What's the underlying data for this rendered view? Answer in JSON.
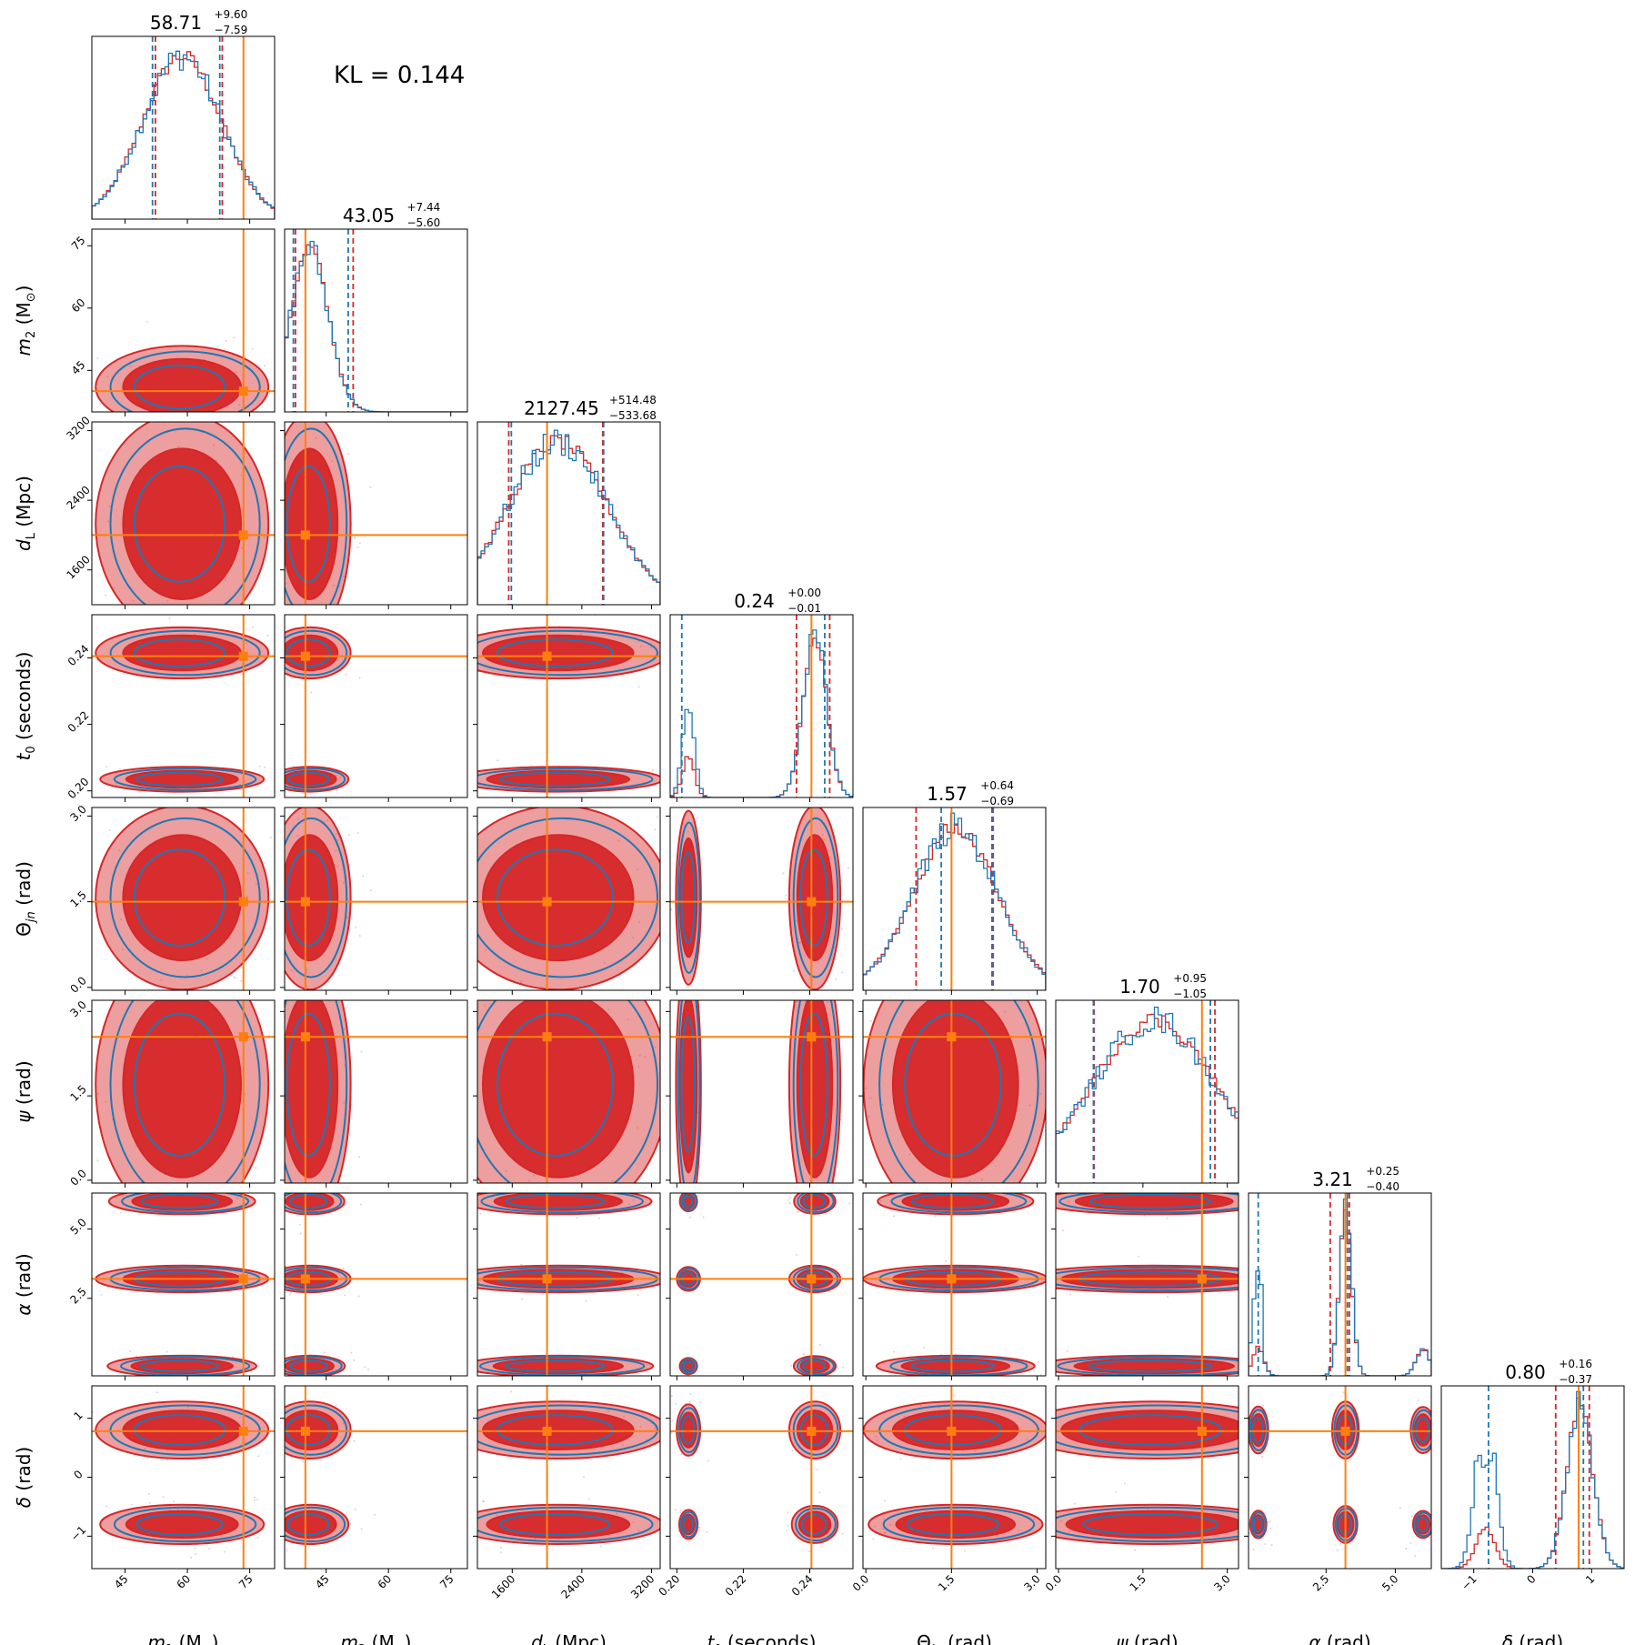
{
  "figure": {
    "kl_label": "KL = 0.144"
  },
  "colors": {
    "model_a": "#d62728",
    "model_b": "#1f77b4",
    "truth": "#ff7f0e"
  },
  "chart_data": {
    "type": "corner",
    "grid": false,
    "legend": "none",
    "parameters": [
      {
        "key": "m1",
        "label_html": "<tspan font-style='italic'>m</tspan><tspan font-size='13' dy='5'>1</tspan><tspan dy='-5'> (M</tspan><tspan font-size='13' dy='5'>⊙</tspan><tspan dy='-5'>)</tspan>",
        "label_text": "m1 (M⊙)",
        "range": [
          37,
          81
        ],
        "ticks": [
          45,
          60,
          75
        ],
        "tick_labels": [
          "45",
          "60",
          "75"
        ],
        "truth": 73.5,
        "median": 58.71,
        "plus": 9.6,
        "minus": 7.59,
        "title": "58.71",
        "title_plus": "+9.60",
        "title_minus": "−7.59"
      },
      {
        "key": "m2",
        "label_html": "<tspan font-style='italic'>m</tspan><tspan font-size='13' dy='5'>2</tspan><tspan dy='-5'> (M</tspan><tspan font-size='13' dy='5'>⊙</tspan><tspan dy='-5'>)</tspan>",
        "label_text": "m2 (M⊙)",
        "range": [
          35,
          79
        ],
        "ticks": [
          45,
          60,
          75
        ],
        "tick_labels": [
          "45",
          "60",
          "75"
        ],
        "truth": 40,
        "median": 43.05,
        "plus": 7.44,
        "minus": 5.6,
        "title": "43.05",
        "title_plus": "+7.44",
        "title_minus": "−5.60"
      },
      {
        "key": "dL",
        "label_html": "<tspan font-style='italic'>d</tspan><tspan font-size='13' dy='5'>L</tspan><tspan dy='-5'> (Mpc)</tspan>",
        "label_text": "dL (Mpc)",
        "range": [
          1200,
          3300
        ],
        "ticks": [
          1600,
          2400,
          3200
        ],
        "tick_labels": [
          "1600",
          "2400",
          "3200"
        ],
        "truth": 2000,
        "median": 2127.45,
        "plus": 514.48,
        "minus": 533.68,
        "title": "2127.45",
        "title_plus": "+514.48",
        "title_minus": "−533.68"
      },
      {
        "key": "t0",
        "label_html": "<tspan font-style='italic'>t</tspan><tspan font-size='13' dy='5'>0</tspan><tspan dy='-5'> (seconds)</tspan>",
        "label_text": "t0 (seconds)",
        "range": [
          0.198,
          0.253
        ],
        "ticks": [
          0.2,
          0.22,
          0.24
        ],
        "tick_labels": [
          "0.20",
          "0.22",
          "0.24"
        ],
        "truth": 0.2405,
        "median": 0.24,
        "plus": 0.0,
        "minus": 0.01,
        "title": "0.24",
        "title_plus": "+0.00",
        "title_minus": "−0.01"
      },
      {
        "key": "theta_jn",
        "label_html": "Θ<tspan font-size='13' dy='5' font-style='italic'>jn</tspan><tspan dy='-5'> (rad)</tspan>",
        "label_text": "Θjn (rad)",
        "range": [
          -0.05,
          3.15
        ],
        "ticks": [
          0.0,
          1.5,
          3.0
        ],
        "tick_labels": [
          "0.0",
          "1.5",
          "3.0"
        ],
        "truth": 1.5,
        "median": 1.57,
        "plus": 0.64,
        "minus": 0.69,
        "title": "1.57",
        "title_plus": "+0.64",
        "title_minus": "−0.69"
      },
      {
        "key": "psi",
        "label_html": "<tspan font-style='italic'>ψ</tspan><tspan> (rad)</tspan>",
        "label_text": "ψ (rad)",
        "range": [
          -0.05,
          3.2
        ],
        "ticks": [
          0.0,
          1.5,
          3.0
        ],
        "tick_labels": [
          "0.0",
          "1.5",
          "3.0"
        ],
        "truth": 2.55,
        "median": 1.7,
        "plus": 0.95,
        "minus": 1.05,
        "title": "1.70",
        "title_plus": "+0.95",
        "title_minus": "−1.05"
      },
      {
        "key": "alpha",
        "label_html": "<tspan font-style='italic'>α</tspan><tspan> (rad)</tspan>",
        "label_text": "α (rad)",
        "range": [
          -0.3,
          6.3
        ],
        "ticks": [
          2.5,
          5.0
        ],
        "tick_labels": [
          "2.5",
          "5.0"
        ],
        "truth": 3.2,
        "median": 3.21,
        "plus": 0.25,
        "minus": 0.4,
        "title": "3.21",
        "title_plus": "+0.25",
        "title_minus": "−0.40"
      },
      {
        "key": "delta",
        "label_html": "<tspan font-style='italic'>δ</tspan><tspan> (rad)</tspan>",
        "label_text": "δ (rad)",
        "range": [
          -1.55,
          1.55
        ],
        "ticks": [
          -1,
          0,
          1
        ],
        "tick_labels": [
          "−1",
          "0",
          "1"
        ],
        "truth": 0.78,
        "median": 0.8,
        "plus": 0.16,
        "minus": 0.37,
        "title": "0.80",
        "title_plus": "+0.16",
        "title_minus": "−0.37"
      }
    ],
    "quantiles_model_a": [
      [
        52.3,
        68.4
      ],
      [
        37.6,
        51.5
      ],
      [
        1560,
        2640
      ],
      [
        0.236,
        0.246
      ],
      [
        0.88,
        2.21
      ],
      [
        0.63,
        2.78
      ],
      [
        2.65,
        3.34
      ],
      [
        0.39,
        0.96
      ]
    ],
    "quantiles_model_b": [
      [
        51.6,
        67.8
      ],
      [
        37.1,
        50.3
      ],
      [
        1590,
        2650
      ],
      [
        0.2015,
        0.2445
      ],
      [
        1.32,
        2.23
      ],
      [
        0.62,
        2.7
      ],
      [
        0.05,
        3.27
      ],
      [
        -0.75,
        0.86
      ]
    ]
  }
}
